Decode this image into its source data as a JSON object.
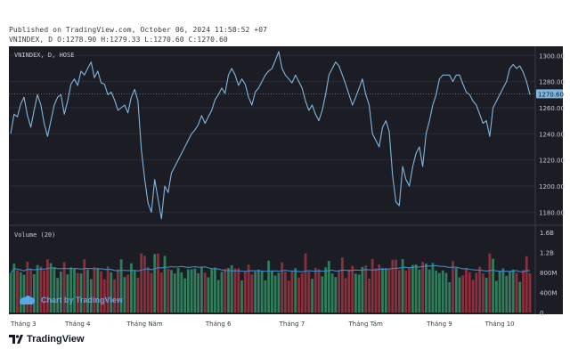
{
  "header": {
    "published": "Published on TradingView.com, October 06, 2024 11:58:52 +07",
    "ohlc": "VNINDEX, D O:1278.90 H:1279.33 L:1270.60 C:1270.60"
  },
  "footer": {
    "brand": "TradingView"
  },
  "watermark": "Chart by TradingView",
  "colors": {
    "background": "#1c1d24",
    "price_line": "#7fb6e0",
    "up_volume": "#2f7d5b",
    "down_volume": "#8b2f3c",
    "volume_ma": "#3d8ac4",
    "last_price_badge": "#7fb6e0",
    "grid": "#2a2c36",
    "axis_text": "#c7c9d1"
  },
  "chart_data": [
    {
      "type": "line",
      "title": "VNINDEX, D, HOSE",
      "series": [
        {
          "name": "",
          "values": [
            1240,
            1255,
            1253,
            1263,
            1268,
            1254,
            1245,
            1258,
            1270,
            1262,
            1248,
            1238,
            1250,
            1262,
            1268,
            1270,
            1255,
            1265,
            1278,
            1282,
            1277,
            1288,
            1285,
            1290,
            1295,
            1283,
            1288,
            1279,
            1278,
            1270,
            1272,
            1266,
            1258,
            1260,
            1262,
            1256,
            1268,
            1274,
            1265,
            1228,
            1205,
            1187,
            1180,
            1205,
            1190,
            1175,
            1200,
            1195,
            1210,
            1215,
            1220,
            1225,
            1230,
            1235,
            1240,
            1243,
            1247,
            1254,
            1248,
            1253,
            1258,
            1266,
            1270,
            1275,
            1271,
            1285,
            1290,
            1285,
            1277,
            1282,
            1278,
            1268,
            1262,
            1272,
            1275,
            1280,
            1285,
            1288,
            1290,
            1296,
            1303,
            1290,
            1285,
            1282,
            1279,
            1285,
            1280,
            1275,
            1265,
            1258,
            1262,
            1255,
            1250,
            1258,
            1270,
            1285,
            1290,
            1295,
            1292,
            1285,
            1278,
            1270,
            1262,
            1268,
            1275,
            1282,
            1270,
            1262,
            1240,
            1235,
            1230,
            1245,
            1250,
            1242,
            1208,
            1188,
            1185,
            1215,
            1205,
            1200,
            1215,
            1225,
            1230,
            1215,
            1240,
            1250,
            1262,
            1270,
            1282,
            1285,
            1285,
            1285,
            1280,
            1285,
            1285,
            1278,
            1272,
            1270,
            1265,
            1262,
            1255,
            1248,
            1250,
            1238,
            1260,
            1265,
            1270,
            1275,
            1280,
            1290,
            1293,
            1290,
            1292,
            1287,
            1280,
            1270
          ]
        }
      ],
      "ylim": [
        1170,
        1307
      ],
      "yticks": [
        1180,
        1200,
        1220,
        1240,
        1260,
        1280,
        1300
      ],
      "last_price": 1270.6,
      "grid": true
    },
    {
      "type": "bar",
      "title": "Volume (20)",
      "ylim": [
        0,
        1600
      ],
      "ytick_labels": [
        "0",
        "400M",
        "800M",
        "1.2B",
        "1.6B"
      ],
      "ytick_values": [
        0,
        400,
        800,
        1200,
        1600
      ],
      "ma_period": 20
    }
  ],
  "x_axis": {
    "labels": [
      "Tháng 3",
      "Tháng 4",
      "Tháng Năm",
      "Tháng 6",
      "Tháng 7",
      "Tháng Tám",
      "Tháng 9",
      "Tháng 10"
    ],
    "label_index": [
      0,
      20,
      40,
      62,
      84,
      106,
      128,
      146
    ]
  }
}
